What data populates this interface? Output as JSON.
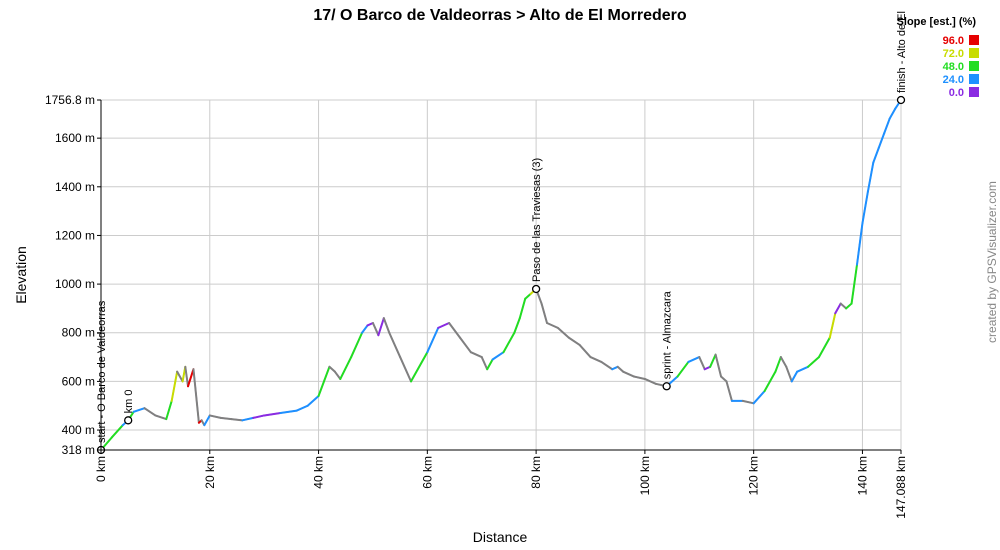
{
  "chart_data": {
    "type": "line",
    "title": "17/ O Barco de Valdeorras > Alto de El Morredero",
    "xlabel": "Distance",
    "ylabel": "Elevation",
    "xlim": [
      0,
      147.088
    ],
    "ylim": [
      318,
      1756.8
    ],
    "x_ticks": [
      {
        "value": 0,
        "label": "0 km"
      },
      {
        "value": 20,
        "label": "20 km"
      },
      {
        "value": 40,
        "label": "40 km"
      },
      {
        "value": 60,
        "label": "60 km"
      },
      {
        "value": 80,
        "label": "80 km"
      },
      {
        "value": 100,
        "label": "100 km"
      },
      {
        "value": 120,
        "label": "120 km"
      },
      {
        "value": 140,
        "label": "140 km"
      },
      {
        "value": 147.088,
        "label": "147.088 km"
      }
    ],
    "y_ticks": [
      {
        "value": 318,
        "label": "318 m"
      },
      {
        "value": 400,
        "label": "400 m"
      },
      {
        "value": 600,
        "label": "600 m"
      },
      {
        "value": 800,
        "label": "800 m"
      },
      {
        "value": 1000,
        "label": "1000 m"
      },
      {
        "value": 1200,
        "label": "1200 m"
      },
      {
        "value": 1400,
        "label": "1400 m"
      },
      {
        "value": 1600,
        "label": "1600 m"
      },
      {
        "value": 1756.8,
        "label": "1756.8 m"
      }
    ],
    "grid": true,
    "legend": {
      "title": "Slope [est.] (%)",
      "placement": "top-right",
      "entries": [
        {
          "label": "96.0",
          "color": "#e60000"
        },
        {
          "label": "72.0",
          "color": "#c8dc00"
        },
        {
          "label": "48.0",
          "color": "#22dd22"
        },
        {
          "label": "24.0",
          "color": "#1e90ff"
        },
        {
          "label": "0.0",
          "color": "#8a2be2"
        }
      ]
    },
    "series": [
      {
        "x": [
          0,
          2,
          4,
          5,
          6,
          8,
          10,
          12,
          13,
          14,
          15,
          15.5,
          16,
          17,
          18,
          18.5,
          19,
          20,
          22,
          24,
          26,
          28,
          30,
          33,
          36,
          38,
          40,
          41,
          42,
          43,
          44,
          46,
          48,
          49,
          50,
          51,
          52,
          53,
          55,
          57,
          60,
          62,
          64,
          66,
          68,
          70,
          71,
          72,
          74,
          76,
          77,
          78,
          79,
          80,
          81,
          82,
          84,
          86,
          88,
          90,
          92,
          94,
          95,
          96,
          98,
          100,
          102,
          104,
          106,
          108,
          110,
          111,
          112,
          113,
          114,
          115,
          116,
          118,
          120,
          122,
          124,
          125,
          126,
          127,
          128,
          130,
          132,
          134,
          135,
          136,
          137,
          138,
          139,
          140,
          141,
          142,
          143,
          144,
          145,
          146,
          147.088
        ],
        "y": [
          318,
          370,
          420,
          440,
          475,
          490,
          460,
          445,
          520,
          640,
          600,
          660,
          580,
          650,
          430,
          440,
          420,
          460,
          450,
          445,
          440,
          450,
          460,
          470,
          480,
          500,
          540,
          600,
          660,
          640,
          610,
          700,
          800,
          830,
          840,
          790,
          860,
          800,
          700,
          600,
          720,
          820,
          840,
          780,
          720,
          700,
          650,
          690,
          720,
          800,
          860,
          940,
          960,
          980,
          920,
          840,
          820,
          780,
          750,
          700,
          680,
          650,
          660,
          640,
          620,
          610,
          590,
          580,
          620,
          680,
          700,
          650,
          660,
          710,
          620,
          600,
          520,
          520,
          510,
          560,
          640,
          700,
          660,
          600,
          640,
          660,
          700,
          780,
          880,
          920,
          900,
          920,
          1080,
          1250,
          1380,
          1500,
          1560,
          1620,
          1680,
          1720,
          1756.8
        ],
        "slope": [
          2,
          2,
          1,
          2,
          1,
          0,
          1,
          2,
          3,
          1,
          3,
          2,
          4,
          0,
          4,
          3,
          1,
          0,
          0,
          0,
          1,
          0,
          0,
          1,
          1,
          1,
          2,
          2,
          0,
          0,
          2,
          2,
          1,
          0,
          1,
          0,
          0,
          1,
          0,
          2,
          1,
          0,
          0,
          0,
          0,
          0,
          2,
          1,
          2,
          2,
          2,
          2,
          3,
          0,
          0,
          1,
          0,
          0,
          0,
          0,
          0,
          1,
          0,
          0,
          0,
          0,
          0,
          1,
          2,
          1,
          0,
          0,
          2,
          0,
          0,
          0,
          1,
          0,
          1,
          2,
          2,
          0,
          0,
          1,
          1,
          2,
          2,
          3,
          0,
          1,
          2,
          2,
          1,
          1,
          1,
          1,
          1,
          1,
          1,
          1
        ]
      }
    ],
    "waypoints": [
      {
        "x": 0,
        "y": 318,
        "label": "start - O Barco de Valdeorras"
      },
      {
        "x": 5,
        "y": 440,
        "label": "km 0"
      },
      {
        "x": 80,
        "y": 980,
        "label": "Paso de las Traviesas (3)"
      },
      {
        "x": 104,
        "y": 580,
        "label": "sprint - Almazcara"
      },
      {
        "x": 147.088,
        "y": 1756.8,
        "label": "finish - Alto de El"
      }
    ]
  },
  "credit": "created by GPSVisualizer.com"
}
